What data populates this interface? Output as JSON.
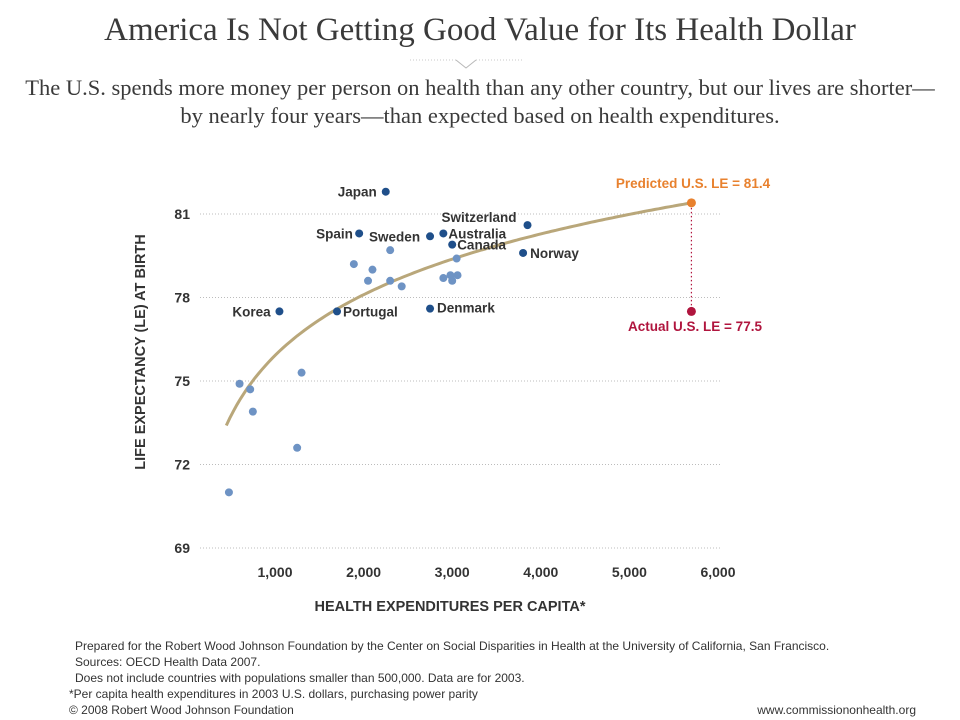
{
  "title": "America Is Not Getting Good Value for Its Health Dollar",
  "subtitle_lines": [
    "The U.S. spends more money per person on health than any other country, but our lives are shorter—",
    "by nearly four years—than expected based on health expenditures."
  ],
  "footer": {
    "lines": [
      "Prepared for the Robert Wood Johnson Foundation by the Center on Social Disparities in Health at the University of California, San Francisco.",
      "Sources: OECD Health Data 2007.",
      "Does not include countries with populations smaller than 500,000. Data are for 2003."
    ],
    "footnote": "*Per capita health expenditures in 2003 U.S. dollars, purchasing power parity",
    "copyright": "© 2008 Robert Wood Johnson Foundation",
    "website": "www.commissiononhealth.org"
  },
  "colors": {
    "labeled_point": "#1f4f8a",
    "unlabeled_point": "#6e93c4",
    "predicted": "#e8812e",
    "actual": "#b0153e",
    "curve": "#b9a77a",
    "grid": "#bcbcbc",
    "text": "#333333"
  },
  "chart_data": {
    "type": "scatter",
    "xlabel": "HEALTH EXPENDITURES PER CAPITA*",
    "ylabel": "LIFE EXPECTANCY (LE) AT BIRTH",
    "xlim": [
      0,
      6300
    ],
    "ylim": [
      69,
      82.2
    ],
    "xticks": [
      1000,
      2000,
      3000,
      4000,
      5000,
      6000
    ],
    "xtick_labels": [
      "1,000",
      "2,000",
      "3,000",
      "4,000",
      "5,000",
      "6,000"
    ],
    "yticks": [
      69,
      72,
      75,
      78,
      81
    ],
    "grid": "horizontal dotted",
    "labeled_points": [
      {
        "label": "Japan",
        "x": 2250,
        "y": 81.8
      },
      {
        "label": "Switzerland",
        "x": 3850,
        "y": 80.6
      },
      {
        "label": "Spain",
        "x": 1950,
        "y": 80.3
      },
      {
        "label": "Sweden",
        "x": 2750,
        "y": 80.2
      },
      {
        "label": "Australia",
        "x": 2900,
        "y": 80.3
      },
      {
        "label": "Canada",
        "x": 3000,
        "y": 79.9
      },
      {
        "label": "Norway",
        "x": 3800,
        "y": 79.6
      },
      {
        "label": "Korea",
        "x": 1050,
        "y": 77.5
      },
      {
        "label": "Portugal",
        "x": 1700,
        "y": 77.5
      },
      {
        "label": "Denmark",
        "x": 2750,
        "y": 77.6
      }
    ],
    "unlabeled_points": [
      {
        "x": 2300,
        "y": 79.7
      },
      {
        "x": 1890,
        "y": 79.2
      },
      {
        "x": 2100,
        "y": 79.0
      },
      {
        "x": 2050,
        "y": 78.6
      },
      {
        "x": 2300,
        "y": 78.6
      },
      {
        "x": 2430,
        "y": 78.4
      },
      {
        "x": 3050,
        "y": 79.4
      },
      {
        "x": 2900,
        "y": 78.7
      },
      {
        "x": 2980,
        "y": 78.8
      },
      {
        "x": 3000,
        "y": 78.6
      },
      {
        "x": 3060,
        "y": 78.8
      },
      {
        "x": 600,
        "y": 74.9
      },
      {
        "x": 720,
        "y": 74.7
      },
      {
        "x": 750,
        "y": 73.9
      },
      {
        "x": 1300,
        "y": 75.3
      },
      {
        "x": 1250,
        "y": 72.6
      },
      {
        "x": 480,
        "y": 71.0
      }
    ],
    "curve": "logarithmic fit",
    "predicted": {
      "label": "Predicted U.S. LE = 81.4",
      "x": 5700,
      "y": 81.4
    },
    "actual": {
      "label": "Actual U.S. LE = 77.5",
      "x": 5700,
      "y": 77.5
    }
  }
}
